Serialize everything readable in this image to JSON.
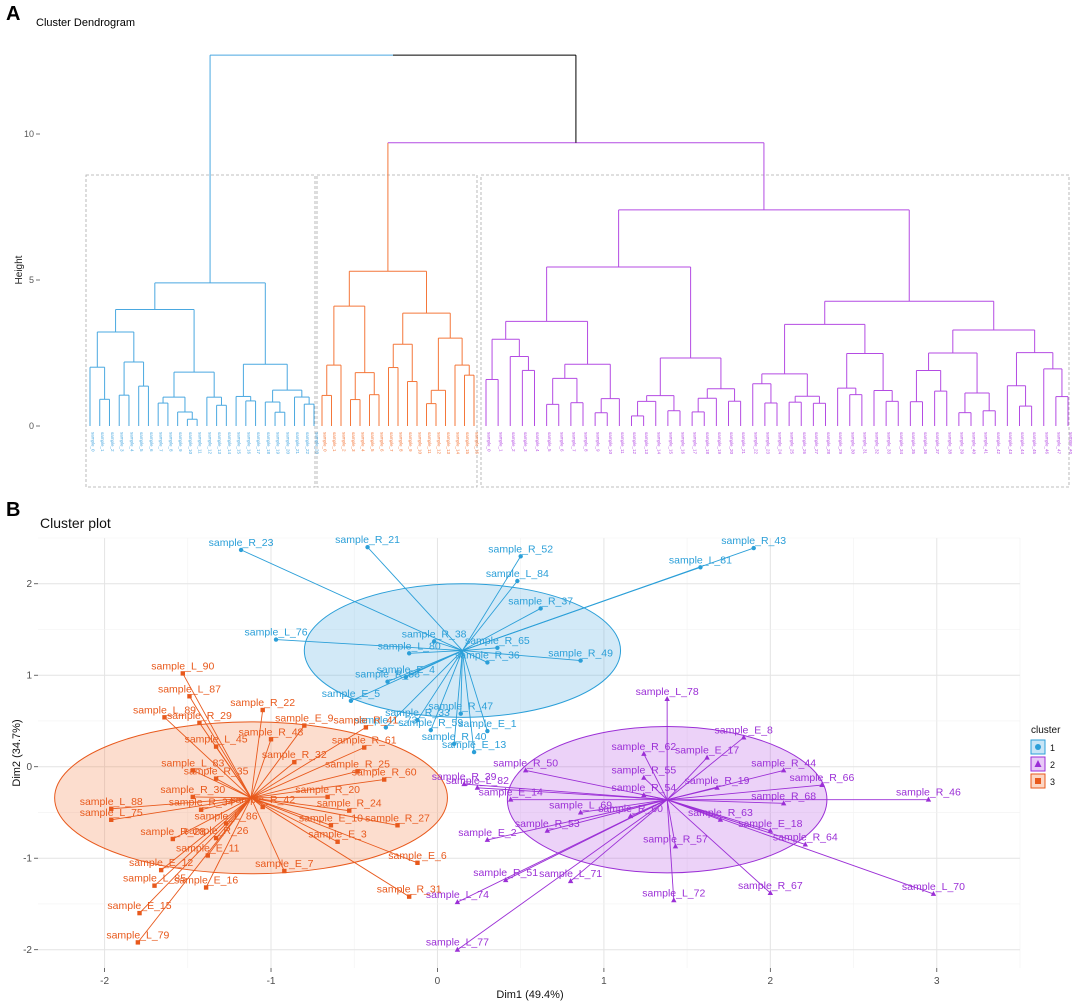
{
  "chart_data": [
    {
      "type": "dendrogram",
      "panel": "A",
      "title": "Cluster Dendrogram",
      "ylabel": "Height",
      "yticks": [
        0,
        5,
        10
      ],
      "ylim": [
        0,
        13
      ],
      "clusters": [
        {
          "id": 1,
          "color": "#4aa8e0",
          "n_leaves": 24,
          "merge_height": 4.9
        },
        {
          "id": 3,
          "color": "#f4773a",
          "n_leaves": 17,
          "merge_height": 5.3
        },
        {
          "id": 2,
          "color": "#b44be3",
          "n_leaves": 49,
          "merge_height": 7.4
        }
      ],
      "top_merges": [
        {
          "clusters": [
            3,
            2
          ],
          "height": 9.7
        },
        {
          "clusters": [
            1,
            "3+2"
          ],
          "height": 12.7
        }
      ]
    },
    {
      "type": "scatter",
      "panel": "B",
      "title": "Cluster plot",
      "xlabel": "Dim1 (49.4%)",
      "ylabel": "Dim2 (34.7%)",
      "xlim": [
        -2.4,
        3.5
      ],
      "ylim": [
        -2.2,
        2.5
      ],
      "xticks": [
        -2,
        -1,
        0,
        1,
        2,
        3
      ],
      "yticks": [
        -2,
        -1,
        0,
        1,
        2
      ],
      "legend": {
        "title": "cluster",
        "position": "right",
        "entries": [
          "1",
          "2",
          "3"
        ]
      },
      "clusters": [
        {
          "name": "1",
          "color": "#2b9fd8",
          "fill": "#4aa8e0",
          "marker": "circle",
          "center": [
            0.15,
            1.27
          ],
          "ellipse": {
            "rx": 0.95,
            "ry": 0.73
          },
          "points": [
            {
              "label": "sample_R_23",
              "x": -1.18,
              "y": 2.37
            },
            {
              "label": "sample_R_21",
              "x": -0.42,
              "y": 2.4
            },
            {
              "label": "sample_R_52",
              "x": 0.5,
              "y": 2.3
            },
            {
              "label": "sample_R_43",
              "x": 1.9,
              "y": 2.39
            },
            {
              "label": "sample_L_81",
              "x": 1.58,
              "y": 2.18
            },
            {
              "label": "sample_L_84",
              "x": 0.48,
              "y": 2.03
            },
            {
              "label": "sample_R_37",
              "x": 0.62,
              "y": 1.73
            },
            {
              "label": "sample_R_38",
              "x": -0.02,
              "y": 1.37
            },
            {
              "label": "sample_L_76",
              "x": -0.97,
              "y": 1.39
            },
            {
              "label": "sample_R_65",
              "x": 0.36,
              "y": 1.3
            },
            {
              "label": "sample_L_80",
              "x": -0.17,
              "y": 1.24
            },
            {
              "label": "sample_R_36",
              "x": 0.3,
              "y": 1.14
            },
            {
              "label": "sample_R_49",
              "x": 0.86,
              "y": 1.16
            },
            {
              "label": "sample_E_4",
              "x": -0.19,
              "y": 0.98
            },
            {
              "label": "sample_R_58",
              "x": -0.3,
              "y": 0.93
            },
            {
              "label": "sample_E_5",
              "x": -0.52,
              "y": 0.72
            },
            {
              "label": "sample_R_33",
              "x": -0.12,
              "y": 0.51
            },
            {
              "label": "sample_R_47",
              "x": 0.14,
              "y": 0.58
            },
            {
              "label": "sample_R_59",
              "x": -0.04,
              "y": 0.4
            },
            {
              "label": "sample_E_1",
              "x": 0.3,
              "y": 0.39
            },
            {
              "label": "sample_L_73",
              "x": -0.31,
              "y": 0.43
            },
            {
              "label": "sample_R_40",
              "x": 0.1,
              "y": 0.25
            },
            {
              "label": "sample_E_13",
              "x": 0.22,
              "y": 0.16
            }
          ]
        },
        {
          "name": "2",
          "color": "#9b2fd6",
          "fill": "#b44be3",
          "marker": "triangle",
          "center": [
            1.38,
            -0.36
          ],
          "ellipse": {
            "rx": 0.96,
            "ry": 0.8
          },
          "points": [
            {
              "label": "sample_L_78",
              "x": 1.38,
              "y": 0.74
            },
            {
              "label": "sample_E_8",
              "x": 1.84,
              "y": 0.32
            },
            {
              "label": "sample_R_62",
              "x": 1.24,
              "y": 0.14
            },
            {
              "label": "sample_E_17",
              "x": 1.62,
              "y": 0.1
            },
            {
              "label": "sample_R_44",
              "x": 2.08,
              "y": -0.04
            },
            {
              "label": "sample_R_50",
              "x": 0.53,
              "y": -0.04
            },
            {
              "label": "sample_R_55",
              "x": 1.24,
              "y": -0.12
            },
            {
              "label": "sample_R_66",
              "x": 2.31,
              "y": -0.2
            },
            {
              "label": "sample_R_19",
              "x": 1.68,
              "y": -0.23
            },
            {
              "label": "sample_L_82",
              "x": 0.24,
              "y": -0.23
            },
            {
              "label": "sample_R_54",
              "x": 1.24,
              "y": -0.31
            },
            {
              "label": "sample_R_46",
              "x": 2.95,
              "y": -0.36
            },
            {
              "label": "sample_R_68",
              "x": 2.08,
              "y": -0.4
            },
            {
              "label": "sample_E_14",
              "x": 0.44,
              "y": -0.36
            },
            {
              "label": "sample_L_69",
              "x": 0.86,
              "y": -0.5
            },
            {
              "label": "sample_R_60",
              "x": 1.16,
              "y": -0.54
            },
            {
              "label": "sample_R_63",
              "x": 1.7,
              "y": -0.58
            },
            {
              "label": "sample_R_53",
              "x": 0.66,
              "y": -0.7
            },
            {
              "label": "sample_E_18",
              "x": 2.0,
              "y": -0.7
            },
            {
              "label": "sample_E_2",
              "x": 0.3,
              "y": -0.8
            },
            {
              "label": "sample_R_57",
              "x": 1.43,
              "y": -0.87
            },
            {
              "label": "sample_R_64",
              "x": 2.21,
              "y": -0.85
            },
            {
              "label": "sample_R_51",
              "x": 0.41,
              "y": -1.24
            },
            {
              "label": "sample_L_71",
              "x": 0.8,
              "y": -1.25
            },
            {
              "label": "sample_R_67",
              "x": 2.0,
              "y": -1.38
            },
            {
              "label": "sample_L_72",
              "x": 1.42,
              "y": -1.46
            },
            {
              "label": "sample_L_70",
              "x": 2.98,
              "y": -1.39
            },
            {
              "label": "sample_L_74",
              "x": 0.12,
              "y": -1.48
            },
            {
              "label": "sample_L_77",
              "x": 0.12,
              "y": -2.0
            },
            {
              "label": "sample_R_39",
              "x": 0.16,
              "y": -0.19
            }
          ]
        },
        {
          "name": "3",
          "color": "#e8591c",
          "fill": "#f4773a",
          "marker": "square",
          "center": [
            -1.12,
            -0.34
          ],
          "ellipse": {
            "rx": 1.18,
            "ry": 0.83
          },
          "points": [
            {
              "label": "sample_L_90",
              "x": -1.53,
              "y": 1.02
            },
            {
              "label": "sample_L_87",
              "x": -1.49,
              "y": 0.77
            },
            {
              "label": "sample_R_22",
              "x": -1.05,
              "y": 0.62
            },
            {
              "label": "sample_L_89",
              "x": -1.64,
              "y": 0.54
            },
            {
              "label": "sample_R_29",
              "x": -1.43,
              "y": 0.48
            },
            {
              "label": "sample_E_9",
              "x": -0.8,
              "y": 0.45
            },
            {
              "label": "sample_R_48",
              "x": -1.0,
              "y": 0.3
            },
            {
              "label": "sample_R_41",
              "x": -0.43,
              "y": 0.43
            },
            {
              "label": "sample_L_45",
              "x": -1.33,
              "y": 0.22
            },
            {
              "label": "sample_R_61",
              "x": -0.44,
              "y": 0.21
            },
            {
              "label": "sample_R_32",
              "x": -0.86,
              "y": 0.05
            },
            {
              "label": "sample_L_83",
              "x": -1.47,
              "y": -0.04
            },
            {
              "label": "sample_R_35",
              "x": -1.33,
              "y": -0.13
            },
            {
              "label": "sample_R_25",
              "x": -0.48,
              "y": -0.05
            },
            {
              "label": "sample_R_60",
              "x": -0.32,
              "y": -0.14
            },
            {
              "label": "sample_R_30",
              "x": -1.47,
              "y": -0.33
            },
            {
              "label": "sample_R_20",
              "x": -0.66,
              "y": -0.33
            },
            {
              "label": "sample_L_88",
              "x": -1.96,
              "y": -0.46
            },
            {
              "label": "sample_R_34",
              "x": -1.42,
              "y": -0.47
            },
            {
              "label": "sample_R_42",
              "x": -1.05,
              "y": -0.44
            },
            {
              "label": "sample_R_24",
              "x": -0.53,
              "y": -0.48
            },
            {
              "label": "sample_L_75",
              "x": -1.96,
              "y": -0.58
            },
            {
              "label": "sample_L_86",
              "x": -1.27,
              "y": -0.62
            },
            {
              "label": "sample_E_10",
              "x": -0.64,
              "y": -0.64
            },
            {
              "label": "sample_R_27",
              "x": -0.24,
              "y": -0.64
            },
            {
              "label": "sample_R_26",
              "x": -1.33,
              "y": -0.78
            },
            {
              "label": "sample_R_28",
              "x": -1.59,
              "y": -0.79
            },
            {
              "label": "sample_E_3",
              "x": -0.6,
              "y": -0.82
            },
            {
              "label": "sample_E_11",
              "x": -1.38,
              "y": -0.97
            },
            {
              "label": "sample_E_12",
              "x": -1.66,
              "y": -1.13
            },
            {
              "label": "sample_E_7",
              "x": -0.92,
              "y": -1.14
            },
            {
              "label": "sample_E_6",
              "x": -0.12,
              "y": -1.05
            },
            {
              "label": "sample_L_85",
              "x": -1.7,
              "y": -1.3
            },
            {
              "label": "sample_R_31",
              "x": -0.17,
              "y": -1.42
            },
            {
              "label": "sample_E_16",
              "x": -1.39,
              "y": -1.32
            },
            {
              "label": "sample_E_15",
              "x": -1.79,
              "y": -1.6
            },
            {
              "label": "sample_L_79",
              "x": -1.8,
              "y": -1.92
            }
          ]
        }
      ]
    }
  ]
}
